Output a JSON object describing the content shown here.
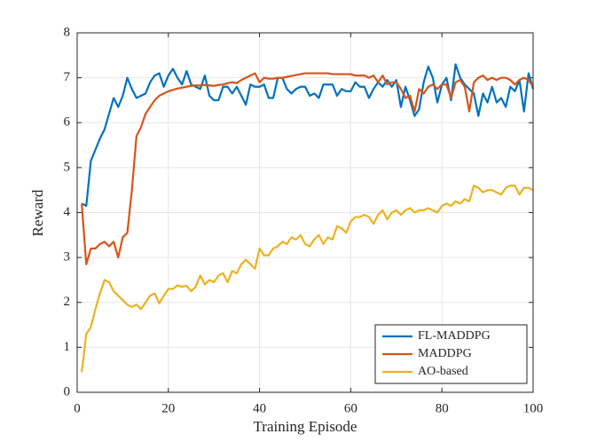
{
  "chart_data": {
    "type": "line",
    "x_label": "Training Episode",
    "y_label": "Reward",
    "x": [
      1,
      2,
      3,
      4,
      5,
      6,
      7,
      8,
      9,
      10,
      11,
      12,
      13,
      14,
      15,
      16,
      17,
      18,
      19,
      20,
      21,
      22,
      23,
      24,
      25,
      26,
      27,
      28,
      29,
      30,
      31,
      32,
      33,
      34,
      35,
      36,
      37,
      38,
      39,
      40,
      41,
      42,
      43,
      44,
      45,
      46,
      47,
      48,
      49,
      50,
      51,
      52,
      53,
      54,
      55,
      56,
      57,
      58,
      59,
      60,
      61,
      62,
      63,
      64,
      65,
      66,
      67,
      68,
      69,
      70,
      71,
      72,
      73,
      74,
      75,
      76,
      77,
      78,
      79,
      80,
      81,
      82,
      83,
      84,
      85,
      86,
      87,
      88,
      89,
      90,
      91,
      92,
      93,
      94,
      95,
      96,
      97,
      98,
      99,
      100
    ],
    "series": [
      {
        "name": "FL-MADDPG",
        "color": "#0072bd",
        "values": [
          4.2,
          4.15,
          5.15,
          5.4,
          5.65,
          5.85,
          6.2,
          6.55,
          6.35,
          6.6,
          7.0,
          6.75,
          6.55,
          6.6,
          6.65,
          6.9,
          7.05,
          7.1,
          6.8,
          7.05,
          7.2,
          7.0,
          6.85,
          7.15,
          6.85,
          6.8,
          6.75,
          7.05,
          6.6,
          6.5,
          6.5,
          6.8,
          6.8,
          6.65,
          6.8,
          6.6,
          6.4,
          6.85,
          6.8,
          6.8,
          6.85,
          6.55,
          6.55,
          7.0,
          7.0,
          6.75,
          6.65,
          6.75,
          6.8,
          6.8,
          6.6,
          6.65,
          6.55,
          6.85,
          6.85,
          6.85,
          6.6,
          6.75,
          6.7,
          6.7,
          6.9,
          6.8,
          6.8,
          6.55,
          6.75,
          6.9,
          6.8,
          6.95,
          6.8,
          6.95,
          6.35,
          6.8,
          6.5,
          6.15,
          6.3,
          6.9,
          7.25,
          7.0,
          6.45,
          6.85,
          7.0,
          6.5,
          7.3,
          7.0,
          6.85,
          6.75,
          6.65,
          6.15,
          6.65,
          6.45,
          6.8,
          6.45,
          6.55,
          6.35,
          6.8,
          6.7,
          6.95,
          6.25,
          7.1,
          6.75
        ]
      },
      {
        "name": "MADDPG",
        "color": "#d95319",
        "values": [
          4.2,
          2.85,
          3.2,
          3.2,
          3.3,
          3.35,
          3.25,
          3.35,
          3.0,
          3.45,
          3.55,
          4.5,
          5.7,
          5.9,
          6.2,
          6.35,
          6.5,
          6.6,
          6.65,
          6.7,
          6.73,
          6.76,
          6.78,
          6.8,
          6.82,
          6.83,
          6.83,
          6.84,
          6.83,
          6.82,
          6.84,
          6.85,
          6.88,
          6.9,
          6.88,
          6.95,
          7.0,
          7.05,
          7.1,
          6.9,
          7.0,
          6.98,
          6.98,
          7.0,
          7.0,
          7.02,
          7.04,
          7.06,
          7.08,
          7.1,
          7.1,
          7.1,
          7.1,
          7.1,
          7.1,
          7.08,
          7.08,
          7.08,
          7.08,
          7.08,
          7.05,
          7.05,
          7.05,
          7.0,
          7.05,
          6.9,
          7.05,
          6.85,
          6.9,
          6.9,
          6.75,
          6.55,
          6.6,
          6.25,
          6.75,
          6.65,
          6.8,
          6.85,
          6.75,
          6.85,
          6.85,
          6.55,
          6.9,
          6.95,
          6.8,
          6.25,
          6.9,
          7.0,
          7.05,
          6.95,
          7.0,
          6.95,
          7.0,
          7.0,
          6.95,
          6.85,
          6.95,
          7.0,
          6.95,
          6.8
        ]
      },
      {
        "name": "AO-based",
        "color": "#edb120",
        "values": [
          0.45,
          1.3,
          1.45,
          1.85,
          2.2,
          2.5,
          2.45,
          2.25,
          2.15,
          2.05,
          1.95,
          1.9,
          1.95,
          1.85,
          2.0,
          2.15,
          2.2,
          1.98,
          2.15,
          2.3,
          2.3,
          2.38,
          2.35,
          2.37,
          2.25,
          2.35,
          2.6,
          2.4,
          2.5,
          2.45,
          2.6,
          2.65,
          2.45,
          2.7,
          2.65,
          2.85,
          2.95,
          2.85,
          2.75,
          3.2,
          3.05,
          3.05,
          3.2,
          3.25,
          3.35,
          3.3,
          3.45,
          3.4,
          3.5,
          3.3,
          3.25,
          3.4,
          3.5,
          3.3,
          3.45,
          3.4,
          3.7,
          3.65,
          3.55,
          3.8,
          3.9,
          3.9,
          3.95,
          3.9,
          3.75,
          3.95,
          4.05,
          3.85,
          4.0,
          4.05,
          3.95,
          4.05,
          4.1,
          4.0,
          4.05,
          4.05,
          4.1,
          4.05,
          4.0,
          4.15,
          4.2,
          4.15,
          4.25,
          4.2,
          4.3,
          4.25,
          4.6,
          4.55,
          4.45,
          4.5,
          4.5,
          4.45,
          4.4,
          4.55,
          4.6,
          4.6,
          4.4,
          4.55,
          4.55,
          4.5
        ]
      }
    ],
    "xlim": [
      0,
      100
    ],
    "xticks": [
      0,
      20,
      40,
      60,
      80,
      100
    ],
    "ylim": [
      0,
      8
    ],
    "yticks": [
      0,
      1,
      2,
      3,
      4,
      5,
      6,
      7,
      8
    ],
    "grid": true,
    "legend": "lower right"
  }
}
